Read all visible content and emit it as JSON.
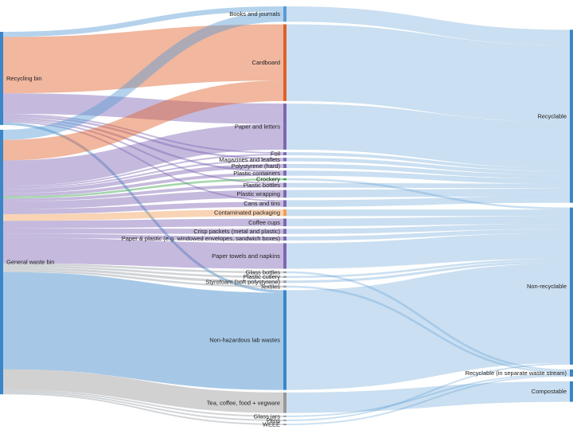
{
  "chart_data": {
    "type": "sankey",
    "title": "",
    "sources": [
      {
        "name": "Recycling bin",
        "color": "#3a86c8"
      },
      {
        "name": "General waste bin",
        "color": "#3a86c8"
      }
    ],
    "items": [
      {
        "name": "Books and journals",
        "color": "#5b9bd5"
      },
      {
        "name": "Cardboard",
        "color": "#e0602a"
      },
      {
        "name": "Paper and letters",
        "color": "#7e67b4"
      },
      {
        "name": "Foil",
        "color": "#7e67b4"
      },
      {
        "name": "Magazines and leaflets",
        "color": "#7e67b4"
      },
      {
        "name": "Polystyrene (hard)",
        "color": "#7e67b4"
      },
      {
        "name": "Plastic containers",
        "color": "#7e67b4"
      },
      {
        "name": "Crockery",
        "color": "#3aa34a"
      },
      {
        "name": "Plastic bottles",
        "color": "#7e67b4"
      },
      {
        "name": "Plastic wrapping",
        "color": "#7e67b4"
      },
      {
        "name": "Cans and tins",
        "color": "#7e67b4"
      },
      {
        "name": "Contaminated packaging",
        "color": "#f0a05a"
      },
      {
        "name": "Coffee cups",
        "color": "#7e67b4"
      },
      {
        "name": "Crisp packets (metal and plastic)",
        "color": "#7e67b4"
      },
      {
        "name": "Paper & plastic (e.g. windowed envelopes, sandwich boxes)",
        "color": "#7e67b4"
      },
      {
        "name": "Paper towels and napkins",
        "color": "#7e67b4"
      },
      {
        "name": "Glass bottles",
        "color": "#9aa0a6"
      },
      {
        "name": "Plastic cutlery",
        "color": "#9aa0a6"
      },
      {
        "name": "Styrofoam (soft polystyrene)",
        "color": "#9aa0a6"
      },
      {
        "name": "Textiles",
        "color": "#9aa0a6"
      },
      {
        "name": "Non-hazardous lab wastes",
        "color": "#3a86c8"
      },
      {
        "name": "Tea, coffee, food + vegware",
        "color": "#999999"
      },
      {
        "name": "Glass jars",
        "color": "#9aa0a6"
      },
      {
        "name": "Pens",
        "color": "#9aa0a6"
      },
      {
        "name": "WEEE",
        "color": "#9aa0a6"
      }
    ],
    "outcomes": [
      {
        "name": "Recyclable",
        "color": "#3a86c8"
      },
      {
        "name": "Non-recyclable",
        "color": "#3a86c8"
      },
      {
        "name": "Recyclable (in separate waste stream)",
        "color": "#3a86c8"
      },
      {
        "name": "Compostable",
        "color": "#3a86c8"
      }
    ],
    "flows": [
      {
        "source": "Recycling bin",
        "target": "Books and journals",
        "value": 1
      },
      {
        "source": "Recycling bin",
        "target": "Cardboard",
        "value": 11
      },
      {
        "source": "Recycling bin",
        "target": "Paper and letters",
        "value": 4
      },
      {
        "source": "Recycling bin",
        "target": "Foil",
        "value": 0.3
      },
      {
        "source": "Recycling bin",
        "target": "Magazines and leaflets",
        "value": 0.4
      },
      {
        "source": "Recycling bin",
        "target": "Plastic containers",
        "value": 0.4
      },
      {
        "source": "Recycling bin",
        "target": "Plastic bottles",
        "value": 0.3
      },
      {
        "source": "Recycling bin",
        "target": "Cans and tins",
        "value": 0.3
      },
      {
        "source": "Recycling bin",
        "target": "Non-hazardous lab wastes",
        "value": 0.5
      },
      {
        "source": "General waste bin",
        "target": "Books and journals",
        "value": 2
      },
      {
        "source": "General waste bin",
        "target": "Cardboard",
        "value": 4
      },
      {
        "source": "General waste bin",
        "target": "Paper and letters",
        "value": 5
      },
      {
        "source": "General waste bin",
        "target": "Foil",
        "value": 0.3
      },
      {
        "source": "General waste bin",
        "target": "Magazines and leaflets",
        "value": 0.3
      },
      {
        "source": "General waste bin",
        "target": "Polystyrene (hard)",
        "value": 0.8
      },
      {
        "source": "General waste bin",
        "target": "Plastic containers",
        "value": 0.6
      },
      {
        "source": "General waste bin",
        "target": "Crockery",
        "value": 0.4
      },
      {
        "source": "General waste bin",
        "target": "Plastic bottles",
        "value": 0.6
      },
      {
        "source": "General waste bin",
        "target": "Plastic wrapping",
        "value": 1.5
      },
      {
        "source": "General waste bin",
        "target": "Cans and tins",
        "value": 1
      },
      {
        "source": "General waste bin",
        "target": "Contaminated packaging",
        "value": 1.3
      },
      {
        "source": "General waste bin",
        "target": "Coffee cups",
        "value": 1.5
      },
      {
        "source": "General waste bin",
        "target": "Crisp packets (metal and plastic)",
        "value": 1
      },
      {
        "source": "General waste bin",
        "target": "Paper & plastic (e.g. windowed envelopes, sandwich boxes)",
        "value": 0.8
      },
      {
        "source": "General waste bin",
        "target": "Paper towels and napkins",
        "value": 5
      },
      {
        "source": "General waste bin",
        "target": "Glass bottles",
        "value": 0.4
      },
      {
        "source": "General waste bin",
        "target": "Plastic cutlery",
        "value": 0.4
      },
      {
        "source": "General waste bin",
        "target": "Styrofoam (soft polystyrene)",
        "value": 0.5
      },
      {
        "source": "General waste bin",
        "target": "Textiles",
        "value": 0.4
      },
      {
        "source": "General waste bin",
        "target": "Non-hazardous lab wastes",
        "value": 19
      },
      {
        "source": "General waste bin",
        "target": "Tea, coffee, food + vegware",
        "value": 4
      },
      {
        "source": "General waste bin",
        "target": "Glass jars",
        "value": 0.3
      },
      {
        "source": "General waste bin",
        "target": "Pens",
        "value": 0.3
      },
      {
        "source": "General waste bin",
        "target": "WEEE",
        "value": 0.3
      },
      {
        "source": "Books and journals",
        "target": "Recyclable",
        "value": 3
      },
      {
        "source": "Cardboard",
        "target": "Recyclable",
        "value": 15
      },
      {
        "source": "Paper and letters",
        "target": "Recyclable",
        "value": 9
      },
      {
        "source": "Foil",
        "target": "Recyclable",
        "value": 0.6
      },
      {
        "source": "Magazines and leaflets",
        "target": "Recyclable",
        "value": 0.7
      },
      {
        "source": "Polystyrene (hard)",
        "target": "Recyclable",
        "value": 0.8
      },
      {
        "source": "Plastic containers",
        "target": "Recyclable",
        "value": 1
      },
      {
        "source": "Crockery",
        "target": "Non-recyclable",
        "value": 0.4
      },
      {
        "source": "Plastic bottles",
        "target": "Recyclable",
        "value": 0.9
      },
      {
        "source": "Plastic wrapping",
        "target": "Recyclable",
        "value": 1.5
      },
      {
        "source": "Cans and tins",
        "target": "Recyclable",
        "value": 1.3
      },
      {
        "source": "Contaminated packaging",
        "target": "Non-recyclable",
        "value": 1.3
      },
      {
        "source": "Coffee cups",
        "target": "Non-recyclable",
        "value": 1.5
      },
      {
        "source": "Crisp packets (metal and plastic)",
        "target": "Non-recyclable",
        "value": 1
      },
      {
        "source": "Paper & plastic (e.g. windowed envelopes, sandwich boxes)",
        "target": "Non-recyclable",
        "value": 0.8
      },
      {
        "source": "Paper towels and napkins",
        "target": "Non-recyclable",
        "value": 5
      },
      {
        "source": "Glass bottles",
        "target": "Recyclable (in separate waste stream)",
        "value": 0.4
      },
      {
        "source": "Plastic cutlery",
        "target": "Non-recyclable",
        "value": 0.4
      },
      {
        "source": "Styrofoam (soft polystyrene)",
        "target": "Non-recyclable",
        "value": 0.5
      },
      {
        "source": "Textiles",
        "target": "Recyclable (in separate waste stream)",
        "value": 0.4
      },
      {
        "source": "Non-hazardous lab wastes",
        "target": "Non-recyclable",
        "value": 19.5
      },
      {
        "source": "Tea, coffee, food + vegware",
        "target": "Compostable",
        "value": 4
      },
      {
        "source": "Glass jars",
        "target": "Recyclable (in separate waste stream)",
        "value": 0.3
      },
      {
        "source": "Pens",
        "target": "Non-recyclable",
        "value": 0.3
      },
      {
        "source": "WEEE",
        "target": "Recyclable (in separate waste stream)",
        "value": 0.3
      }
    ]
  }
}
